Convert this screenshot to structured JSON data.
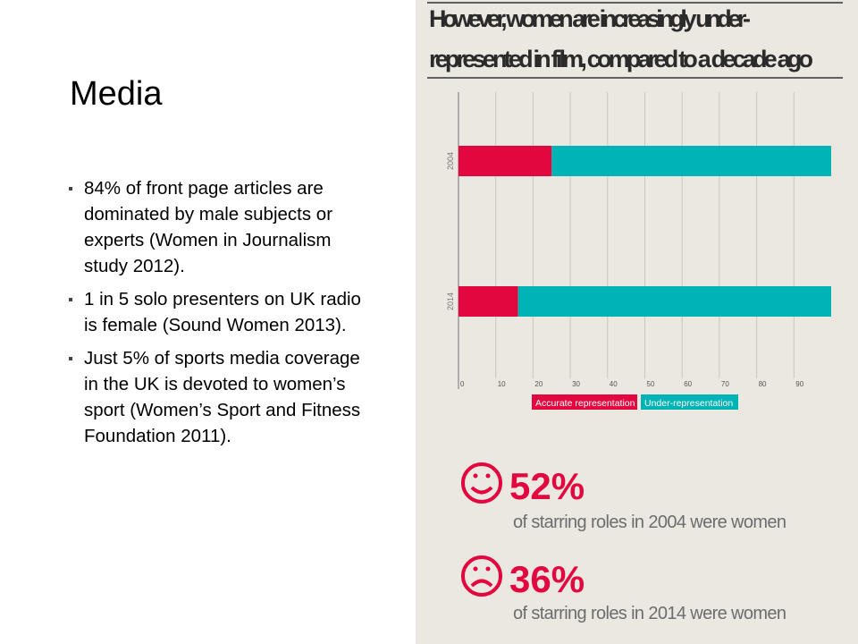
{
  "slide": {
    "title": "Media",
    "bullets": [
      "84% of front page articles are dominated by male subjects or experts (Women in Journalism study 2012).",
      "1 in 5 solo presenters on UK radio is female (Sound Women 2013).",
      "Just 5% of sports media coverage in the UK is devoted to women’s sport (Women’s Sport and Fitness Foundation 2011)."
    ]
  },
  "chart_data": {
    "type": "stacked-bar-horizontal",
    "title": [
      "However, women are increasingly under-",
      "represented in film, compared to a decade ago"
    ],
    "categories": [
      "2004",
      "2014"
    ],
    "series": [
      {
        "name": "Accurate representation",
        "color": "#e2073f",
        "values": [
          25,
          16
        ]
      },
      {
        "name": "Under-representation",
        "color": "#00b3b5",
        "values": [
          75,
          84
        ]
      }
    ],
    "xlim": [
      0,
      100
    ],
    "xticks": [
      0,
      10,
      20,
      30,
      40,
      50,
      60,
      70,
      80,
      90
    ],
    "grid": true
  },
  "stats": [
    {
      "value": "52%",
      "caption": "of starring roles in 2004 were women"
    },
    {
      "value": "36%",
      "caption": "of starring roles in 2014 were women"
    }
  ]
}
